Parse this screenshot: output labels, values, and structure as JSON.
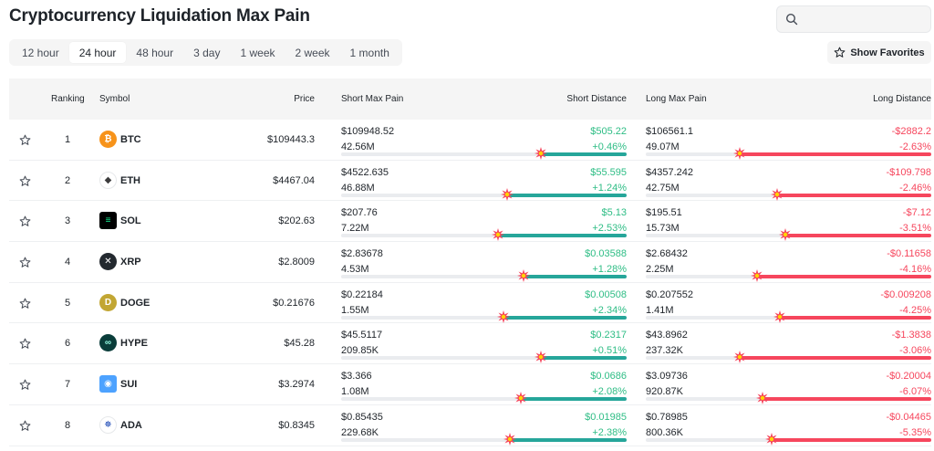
{
  "page": {
    "title": "Cryptocurrency Liquidation Max Pain"
  },
  "search": {
    "placeholder": ""
  },
  "tabs": [
    {
      "label": "12 hour",
      "active": false
    },
    {
      "label": "24 hour",
      "active": true
    },
    {
      "label": "48 hour",
      "active": false
    },
    {
      "label": "3 day",
      "active": false
    },
    {
      "label": "1 week",
      "active": false
    },
    {
      "label": "2 week",
      "active": false
    },
    {
      "label": "1 month",
      "active": false
    }
  ],
  "favorites_button": {
    "label": "Show Favorites"
  },
  "table": {
    "headers": {
      "ranking": "Ranking",
      "symbol": "Symbol",
      "price": "Price",
      "short_max_pain": "Short Max Pain",
      "short_distance": "Short Distance",
      "long_max_pain": "Long Max Pain",
      "long_distance": "Long Distance"
    },
    "rows": [
      {
        "rank": "1",
        "symbol": "BTC",
        "icon": "btc-icon",
        "price": "$109443.3",
        "short_price": "$109948.52",
        "short_vol": "42.56M",
        "short_dist": "$505.22",
        "short_pct": "+0.46%",
        "long_price": "$106561.1",
        "long_vol": "49.07M",
        "long_dist": "-$2882.2",
        "long_pct": "-2.63%",
        "short_fill": 0.3,
        "long_fill": 0.67
      },
      {
        "rank": "2",
        "symbol": "ETH",
        "icon": "eth-icon",
        "price": "$4467.04",
        "short_price": "$4522.635",
        "short_vol": "46.88M",
        "short_dist": "$55.595",
        "short_pct": "+1.24%",
        "long_price": "$4357.242",
        "long_vol": "42.75M",
        "long_dist": "-$109.798",
        "long_pct": "-2.46%",
        "short_fill": 0.42,
        "long_fill": 0.54
      },
      {
        "rank": "3",
        "symbol": "SOL",
        "icon": "sol-icon",
        "price": "$202.63",
        "short_price": "$207.76",
        "short_vol": "7.22M",
        "short_dist": "$5.13",
        "short_pct": "+2.53%",
        "long_price": "$195.51",
        "long_vol": "15.73M",
        "long_dist": "-$7.12",
        "long_pct": "-3.51%",
        "short_fill": 0.45,
        "long_fill": 0.51
      },
      {
        "rank": "4",
        "symbol": "XRP",
        "icon": "xrp-icon",
        "price": "$2.8009",
        "short_price": "$2.83678",
        "short_vol": "4.53M",
        "short_dist": "$0.03588",
        "short_pct": "+1.28%",
        "long_price": "$2.68432",
        "long_vol": "2.25M",
        "long_dist": "-$0.11658",
        "long_pct": "-4.16%",
        "short_fill": 0.36,
        "long_fill": 0.61
      },
      {
        "rank": "5",
        "symbol": "DOGE",
        "icon": "doge-icon",
        "price": "$0.21676",
        "short_price": "$0.22184",
        "short_vol": "1.55M",
        "short_dist": "$0.00508",
        "short_pct": "+2.34%",
        "long_price": "$0.207552",
        "long_vol": "1.41M",
        "long_dist": "-$0.009208",
        "long_pct": "-4.25%",
        "short_fill": 0.43,
        "long_fill": 0.53
      },
      {
        "rank": "6",
        "symbol": "HYPE",
        "icon": "hype-icon",
        "price": "$45.28",
        "short_price": "$45.5117",
        "short_vol": "209.85K",
        "short_dist": "$0.2317",
        "short_pct": "+0.51%",
        "long_price": "$43.8962",
        "long_vol": "237.32K",
        "long_dist": "-$1.3838",
        "long_pct": "-3.06%",
        "short_fill": 0.3,
        "long_fill": 0.67
      },
      {
        "rank": "7",
        "symbol": "SUI",
        "icon": "sui-icon",
        "price": "$3.2974",
        "short_price": "$3.366",
        "short_vol": "1.08M",
        "short_dist": "$0.0686",
        "short_pct": "+2.08%",
        "long_price": "$3.09736",
        "long_vol": "920.87K",
        "long_dist": "-$0.20004",
        "long_pct": "-6.07%",
        "short_fill": 0.37,
        "long_fill": 0.59
      },
      {
        "rank": "8",
        "symbol": "ADA",
        "icon": "ada-icon",
        "price": "$0.8345",
        "short_price": "$0.85435",
        "short_vol": "229.68K",
        "short_dist": "$0.01985",
        "short_pct": "+2.38%",
        "long_price": "$0.78985",
        "long_vol": "800.36K",
        "long_dist": "-$0.04465",
        "long_pct": "-5.35%",
        "short_fill": 0.41,
        "long_fill": 0.56
      }
    ]
  },
  "colors": {
    "positive": "#2ebd85",
    "negative": "#f6465d",
    "short_bar": "#26a69a",
    "long_bar": "#f6465d",
    "btc": "#f7931a",
    "eth": "#627eea",
    "sol": "#000000",
    "xrp": "#23292f",
    "doge": "#c2a633",
    "hype": "#0a3d3a",
    "sui": "#4da2ff",
    "ada": "#0033ad"
  }
}
